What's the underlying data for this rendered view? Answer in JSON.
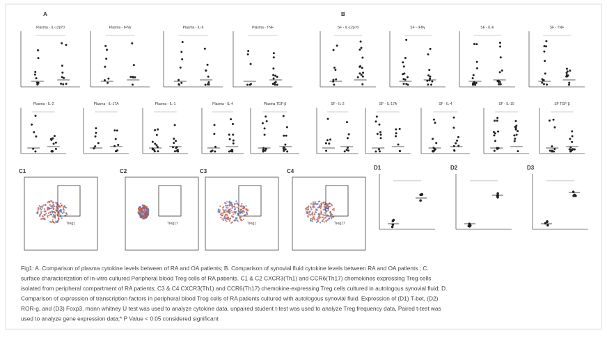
{
  "figure": {
    "panel_labels": {
      "a": "A",
      "b": "B"
    },
    "row1": [
      "Plasma - IL-12p70",
      "Plasma - IFNγ",
      "Plasma - IL-6",
      "Plasma - TNF",
      "SF - IL-12p70",
      "SF - IFNγ",
      "SF - IL-6",
      "SF - TNF"
    ],
    "row2": [
      "Plasma - IL-2",
      "Plasma - IL-17A",
      "Plasma - IL-1",
      "Plasma - IL-4",
      "Plasma TGF-β",
      "SF - IL-2",
      "SF - IL-17A",
      "SF - IL-4",
      "SF - IL-10",
      "SF TGF-β"
    ],
    "flow": [
      {
        "label": "C1",
        "gate": "Treg1"
      },
      {
        "label": "C2",
        "gate": "Treg17"
      },
      {
        "label": "C3",
        "gate": "Treg1"
      },
      {
        "label": "C4",
        "gate": "Treg17"
      }
    ],
    "expression": [
      "D1",
      "D2",
      "D3"
    ],
    "caption": [
      "Fig1: A. Comparison of plasma cytokine levels between of RA and OA patients; B. Comparison of synovial fluid cytokine levels between RA and OA patients ; C.",
      "surface characterization of in-vitro cultured Peripheral blood Treg cells of RA patients. C1 &  C2 CXCR3(Th1) and CCR6(Th17) chemokines expressing Treg cells",
      "isolated from peripheral compartment of RA patients; C3 & C4 CXCR3(Th1) and CCR6(Th17) chemokine-expressing Treg cells cultured in autologous synovial fluid; D.",
      "Comparison of expression of transcription factors in peripheral blood Treg cells of RA patients cultured with autologous synovial fluid. Expression of (D1) T-bet, (D2)",
      "ROR-g, and (D3) Foxp3. mann whitney U test was used to analyze cytokine data, unpaired student t-test was used to analyze Treg frequency data, Paired t-test was",
      "used to analyze  gene expression data;* P Value < 0.05 considered significant"
    ]
  }
}
